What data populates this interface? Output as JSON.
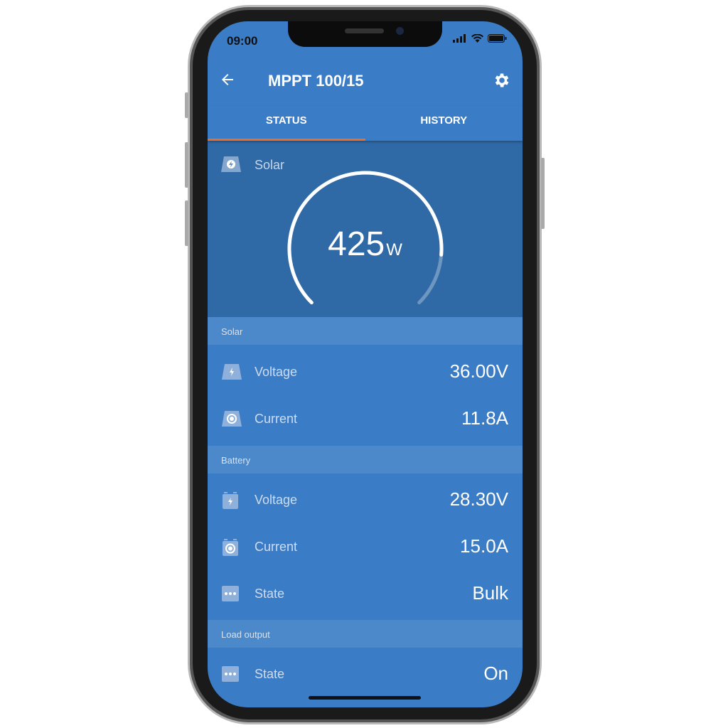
{
  "status_bar": {
    "time": "09:00"
  },
  "header": {
    "title": "MPPT 100/15",
    "back_icon": "arrow-left-icon",
    "settings_icon": "gear-icon"
  },
  "tabs": [
    {
      "label": "STATUS",
      "active": true
    },
    {
      "label": "HISTORY",
      "active": false
    }
  ],
  "colors": {
    "accent": "#f26b21",
    "primary": "#3a7cc6",
    "gauge_bg": "#2f69a6",
    "section": "#4b89cb"
  },
  "gauge": {
    "label": "Solar",
    "value": "425",
    "unit": "W",
    "fill_fraction": 0.85
  },
  "sections": [
    {
      "title": "Solar",
      "rows": [
        {
          "label": "Voltage",
          "value": "36.00V",
          "icon": "solar-voltage-icon"
        },
        {
          "label": "Current",
          "value": "11.8A",
          "icon": "solar-current-icon"
        }
      ]
    },
    {
      "title": "Battery",
      "rows": [
        {
          "label": "Voltage",
          "value": "28.30V",
          "icon": "battery-voltage-icon"
        },
        {
          "label": "Current",
          "value": "15.0A",
          "icon": "battery-current-icon"
        },
        {
          "label": "State",
          "value": "Bulk",
          "icon": "state-icon"
        }
      ]
    },
    {
      "title": "Load output",
      "rows": [
        {
          "label": "State",
          "value": "On",
          "icon": "state-icon"
        }
      ]
    }
  ]
}
